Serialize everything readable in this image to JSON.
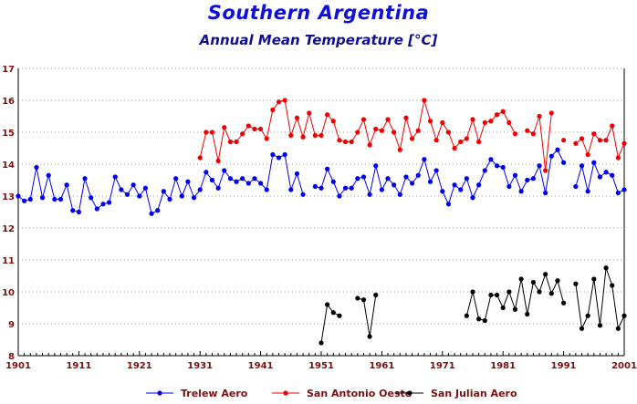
{
  "chart_data": {
    "type": "line",
    "title": "Southern Argentina",
    "subtitle": "Annual Mean Temperature [°C]",
    "xlabel": "",
    "ylabel": "",
    "xlim": [
      1901,
      2001
    ],
    "ylim": [
      8,
      17
    ],
    "x_ticks": [
      "1901",
      "1911",
      "1921",
      "1931",
      "1941",
      "1951",
      "1961",
      "1971",
      "1981",
      "1991",
      "2001"
    ],
    "y_ticks": [
      "8",
      "9",
      "10",
      "11",
      "12",
      "13",
      "14",
      "15",
      "16",
      "17"
    ],
    "grid": true,
    "legend": "bottom",
    "series": [
      {
        "name": "Trelew Aero",
        "color": "#0000ee",
        "x": [
          1901,
          1902,
          1903,
          1904,
          1905,
          1906,
          1907,
          1908,
          1909,
          1910,
          1911,
          1912,
          1913,
          1914,
          1915,
          1916,
          1917,
          1918,
          1919,
          1920,
          1921,
          1922,
          1923,
          1924,
          1925,
          1926,
          1927,
          1928,
          1929,
          1930,
          1931,
          1932,
          1933,
          1934,
          1935,
          1936,
          1937,
          1938,
          1939,
          1940,
          1941,
          1942,
          1943,
          1944,
          1945,
          1946,
          1947,
          1948,
          null,
          1950,
          1951,
          1952,
          1953,
          1954,
          1955,
          1956,
          1957,
          1958,
          1959,
          1960,
          1961,
          1962,
          1963,
          1964,
          1965,
          1966,
          1967,
          1968,
          1969,
          1970,
          1971,
          1972,
          1973,
          1974,
          1975,
          1976,
          1977,
          1978,
          1979,
          1980,
          1981,
          1982,
          1983,
          1984,
          1985,
          1986,
          1987,
          1988,
          1989,
          1990,
          1991,
          null,
          1993,
          1994,
          1995,
          1996,
          1997,
          1998,
          1999,
          2000,
          2001
        ],
        "y": [
          13.0,
          12.85,
          12.9,
          13.9,
          12.95,
          13.65,
          12.9,
          12.9,
          13.35,
          12.55,
          12.5,
          13.55,
          12.95,
          12.6,
          12.75,
          12.8,
          13.6,
          13.2,
          13.05,
          13.35,
          13.0,
          13.25,
          12.45,
          12.55,
          13.15,
          12.9,
          13.55,
          13.0,
          13.45,
          12.95,
          13.2,
          13.75,
          13.5,
          13.25,
          13.8,
          13.55,
          13.45,
          13.55,
          13.4,
          13.55,
          13.4,
          13.2,
          14.3,
          14.2,
          14.3,
          13.2,
          13.7,
          13.05,
          null,
          13.3,
          13.25,
          13.85,
          13.45,
          13.0,
          13.25,
          13.25,
          13.55,
          13.6,
          13.05,
          13.95,
          13.2,
          13.55,
          13.35,
          13.05,
          13.6,
          13.4,
          13.65,
          14.15,
          13.45,
          13.8,
          13.15,
          12.75,
          13.35,
          13.2,
          13.55,
          12.95,
          13.35,
          13.8,
          14.15,
          13.95,
          13.9,
          13.3,
          13.65,
          13.15,
          13.5,
          13.55,
          13.95,
          13.1,
          14.25,
          14.45,
          14.05,
          null,
          13.3,
          13.95,
          13.15,
          14.05,
          13.6,
          13.75,
          13.65,
          13.1,
          13.2
        ]
      },
      {
        "name": "San Antonio Oeste",
        "color": "#ee0000",
        "x": [
          1931,
          1932,
          1933,
          1934,
          1935,
          1936,
          1937,
          1938,
          1939,
          1940,
          1941,
          1942,
          1943,
          1944,
          1945,
          1946,
          1947,
          1948,
          1949,
          1950,
          1951,
          1952,
          1953,
          1954,
          1955,
          1956,
          1957,
          1958,
          1959,
          1960,
          1961,
          1962,
          1963,
          1964,
          1965,
          1966,
          1967,
          1968,
          1969,
          1970,
          1971,
          1972,
          1973,
          1974,
          1975,
          1976,
          1977,
          1978,
          1979,
          1980,
          1981,
          1982,
          1983,
          null,
          1985,
          1986,
          1987,
          1988,
          1989,
          null,
          1991,
          null,
          1993,
          1994,
          1995,
          1996,
          1997,
          1998,
          1999,
          2000,
          2001
        ],
        "y": [
          14.2,
          15.0,
          15.0,
          14.1,
          15.15,
          14.7,
          14.7,
          14.95,
          15.2,
          15.1,
          15.1,
          14.8,
          15.7,
          15.95,
          16.0,
          14.9,
          15.45,
          14.85,
          15.6,
          14.9,
          14.9,
          15.55,
          15.35,
          14.75,
          14.7,
          14.7,
          15.0,
          15.4,
          14.6,
          15.1,
          15.05,
          15.4,
          15.0,
          14.45,
          15.45,
          14.8,
          15.05,
          16.0,
          15.35,
          14.75,
          15.3,
          15.0,
          14.5,
          14.7,
          14.8,
          15.4,
          14.7,
          15.3,
          15.35,
          15.55,
          15.65,
          15.3,
          14.95,
          null,
          15.05,
          14.95,
          15.5,
          13.8,
          15.6,
          null,
          14.75,
          null,
          14.65,
          14.8,
          14.3,
          14.95,
          14.75,
          14.75,
          15.2,
          14.2,
          14.65
        ]
      },
      {
        "name": "San Julian Aero",
        "color": "#000000",
        "x": [
          1951,
          1952,
          1953,
          1954,
          null,
          1957,
          1958,
          1959,
          1960,
          null,
          1975,
          1976,
          1977,
          1978,
          1979,
          1980,
          1981,
          1982,
          1983,
          1984,
          1985,
          1986,
          1987,
          1988,
          1989,
          1990,
          1991,
          null,
          1993,
          1994,
          1995,
          1996,
          1997,
          1998,
          1999,
          2000,
          2001
        ],
        "y": [
          8.4,
          9.6,
          9.35,
          9.25,
          null,
          9.8,
          9.75,
          8.6,
          9.9,
          null,
          9.25,
          10.0,
          9.15,
          9.1,
          9.9,
          9.9,
          9.5,
          10.0,
          9.45,
          10.4,
          9.3,
          10.3,
          10.0,
          10.55,
          9.95,
          10.35,
          9.65,
          null,
          10.25,
          8.85,
          9.25,
          10.4,
          8.95,
          10.75,
          10.2,
          8.85,
          9.25
        ]
      }
    ]
  }
}
